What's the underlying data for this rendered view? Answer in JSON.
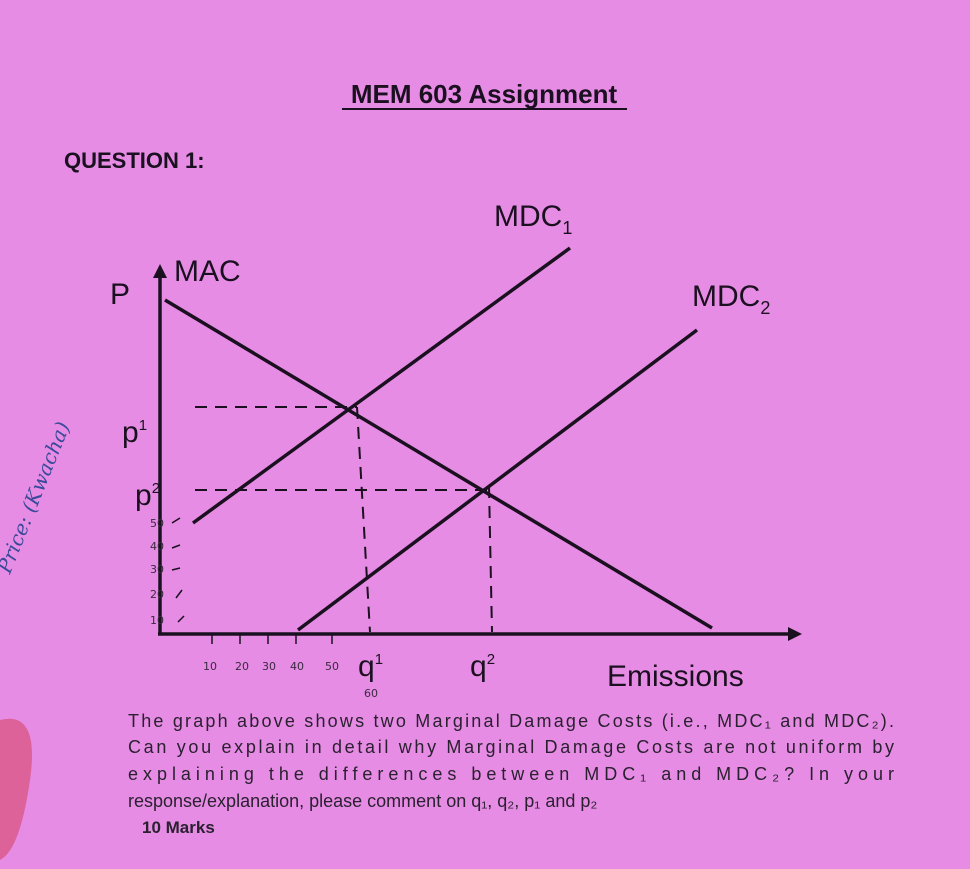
{
  "header": {
    "title": "MEM 603 Assignment",
    "question": "QUESTION 1:"
  },
  "diagram": {
    "margin_note": "Price: (Kwacha)",
    "mdc1": {
      "text": "MDC",
      "sub": "1"
    },
    "mdc2": {
      "text": "MDC",
      "sub": "2"
    },
    "mac": "MAC",
    "y_label": "P",
    "p1": {
      "text": "p",
      "sup": "1"
    },
    "p2": {
      "text": "p",
      "sup": "2"
    },
    "q1": {
      "text": "q",
      "sup": "1"
    },
    "q2": {
      "text": "q",
      "sup": "2"
    },
    "x_label": "Emissions",
    "hand_y": [
      "50",
      "40",
      "30",
      "20",
      "10"
    ],
    "hand_x": [
      "10",
      "20",
      "30",
      "40",
      "50",
      "60"
    ]
  },
  "question": {
    "lines": [
      "The graph above shows two Marginal Damage Costs (i.e., MDC₁ and MDC₂).",
      "Can you explain in detail why Marginal Damage Costs are not uniform by",
      "explaining the differences between MDC₁ and MDC₂? In your",
      "response/explanation, please comment on q₁, q₂, p₁ and p₂"
    ],
    "marks": "10 Marks"
  }
}
